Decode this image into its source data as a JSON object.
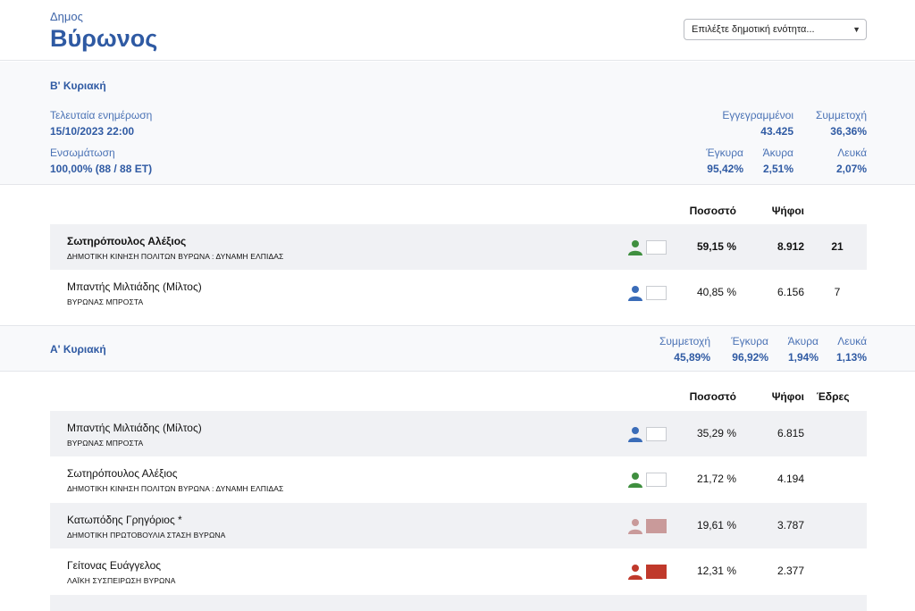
{
  "header": {
    "municipality_label": "Δημος",
    "municipality_name": "Βύρωνος",
    "select_placeholder": "Επιλέξτε δημοτική ενότητα..."
  },
  "round2": {
    "title": "Β' Κυριακή",
    "last_update_label": "Τελευταία ενημέρωση",
    "last_update_value": "15/10/2023 22:00",
    "integration_label": "Ενσωμάτωση",
    "integration_value": "100,00% (88 / 88 ΕΤ)",
    "registered_label": "Εγγεγραμμένοι",
    "registered_value": "43.425",
    "turnout_label": "Συμμετοχή",
    "turnout_value": "36,36%",
    "valid_label": "Έγκυρα",
    "valid_value": "95,42%",
    "invalid_label": "Άκυρα",
    "invalid_value": "2,51%",
    "blank_label": "Λευκά",
    "blank_value": "2,07%",
    "col_percent": "Ποσοστό",
    "col_votes": "Ψήφοι",
    "candidates": [
      {
        "name": "Σωτηρόπουλος Αλέξιος",
        "party": "ΔΗΜΟΤΙΚΗ ΚΙΝΗΣΗ ΠΟΛΙΤΩΝ ΒΥΡΩΝΑ : ΔΥΝΑΜΗ ΕΛΠΙΔΑΣ",
        "percent": "59,15 %",
        "votes": "8.912",
        "seats": "21",
        "icon_color": "#3f8f3f",
        "swatch_color": "#ffffff"
      },
      {
        "name": "Μπαντής Μιλτιάδης (Μίλτος)",
        "party": "ΒΥΡΩΝΑΣ ΜΠΡΟΣΤΑ",
        "percent": "40,85 %",
        "votes": "6.156",
        "seats": "7",
        "icon_color": "#3a6cb8",
        "swatch_color": "#ffffff"
      }
    ]
  },
  "round1": {
    "title": "Α' Κυριακή",
    "turnout_label": "Συμμετοχή",
    "turnout_value": "45,89%",
    "valid_label": "Έγκυρα",
    "valid_value": "96,92%",
    "invalid_label": "Άκυρα",
    "invalid_value": "1,94%",
    "blank_label": "Λευκά",
    "blank_value": "1,13%",
    "col_percent": "Ποσοστό",
    "col_votes": "Ψήφοι",
    "col_seats": "Έδρες",
    "candidates": [
      {
        "name": "Μπαντής Μιλτιάδης (Μίλτος)",
        "party": "ΒΥΡΩΝΑΣ ΜΠΡΟΣΤΑ",
        "percent": "35,29 %",
        "votes": "6.815",
        "icon_color": "#3a6cb8",
        "swatch_color": "#ffffff"
      },
      {
        "name": "Σωτηρόπουλος Αλέξιος",
        "party": "ΔΗΜΟΤΙΚΗ ΚΙΝΗΣΗ ΠΟΛΙΤΩΝ ΒΥΡΩΝΑ : ΔΥΝΑΜΗ ΕΛΠΙΔΑΣ",
        "percent": "21,72 %",
        "votes": "4.194",
        "icon_color": "#3f8f3f",
        "swatch_color": "#ffffff"
      },
      {
        "name": "Κατωπόδης Γρηγόριος *",
        "party": "ΔΗΜΟΤΙΚΗ ΠΡΩΤΟΒΟΥΛΙΑ ΣΤΑΣΗ ΒΥΡΩΝΑ",
        "percent": "19,61 %",
        "votes": "3.787",
        "icon_color": "#c99a9a",
        "swatch_color": "#c99a9a"
      },
      {
        "name": "Γείτονας Ευάγγελος",
        "party": "ΛΑΪΚΗ ΣΥΣΠΕΙΡΩΣΗ ΒΥΡΩΝΑ",
        "percent": "12,31 %",
        "votes": "2.377",
        "icon_color": "#c0392b",
        "swatch_color": "#c0392b"
      }
    ]
  }
}
